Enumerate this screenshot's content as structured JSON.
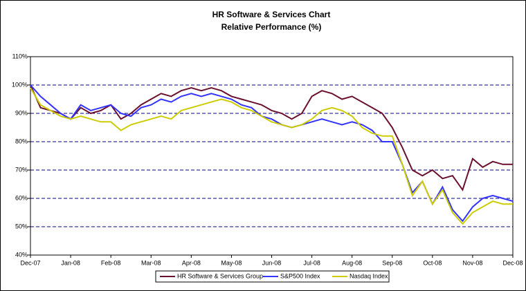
{
  "chart_data": {
    "type": "line",
    "title": "HR Software & Services Chart",
    "subtitle": "Relative Performance (%)",
    "categories": [
      "Dec-07",
      null,
      null,
      null,
      "Jan-08",
      null,
      null,
      null,
      "Feb-08",
      null,
      null,
      null,
      "Mar-08",
      null,
      null,
      null,
      "Apr-08",
      null,
      null,
      null,
      "May-08",
      null,
      null,
      null,
      "Jun-08",
      null,
      null,
      null,
      "Jul-08",
      null,
      null,
      null,
      "Aug-08",
      null,
      null,
      null,
      "Sep-08",
      null,
      null,
      null,
      "Oct-08",
      null,
      null,
      null,
      "Nov-08",
      null,
      null,
      null,
      "Dec-08"
    ],
    "series": [
      {
        "name": "HR Software & Services Group",
        "color": "#6b0f2e",
        "values": [
          100,
          92,
          91,
          90,
          88,
          92,
          90,
          91,
          93,
          88,
          90,
          93,
          95,
          97,
          96,
          98,
          99,
          98,
          99,
          98,
          96,
          95,
          94,
          93,
          91,
          90,
          88,
          90,
          96,
          98,
          97,
          95,
          96,
          94,
          92,
          90,
          85,
          78,
          70,
          68,
          70,
          67,
          68,
          63,
          74,
          71,
          73,
          72,
          72
        ]
      },
      {
        "name": "S&P500 Index",
        "color": "#3333ff",
        "values": [
          100,
          96,
          93,
          90,
          88,
          93,
          91,
          92,
          93,
          90,
          89,
          92,
          93,
          95,
          94,
          96,
          97,
          96,
          97,
          96,
          95,
          93,
          92,
          89,
          88,
          86,
          85,
          86,
          87,
          88,
          87,
          86,
          87,
          86,
          84,
          80,
          80,
          72,
          62,
          66,
          58,
          64,
          56,
          52,
          57,
          60,
          61,
          60,
          59
        ]
      },
      {
        "name": "Nasdaq Index",
        "color": "#cccc00",
        "values": [
          99,
          93,
          91,
          89,
          88,
          89,
          88,
          87,
          87,
          84,
          86,
          87,
          88,
          89,
          88,
          91,
          92,
          93,
          94,
          95,
          94,
          92,
          91,
          89,
          87,
          86,
          85,
          86,
          88,
          91,
          92,
          91,
          89,
          85,
          83,
          82,
          82,
          72,
          61,
          66,
          58,
          63,
          55,
          51,
          55,
          57,
          59,
          58,
          58
        ]
      }
    ],
    "ylim": [
      40,
      110
    ],
    "yticks": [
      {
        "value": 40,
        "label": "40%"
      },
      {
        "value": 50,
        "label": "50%"
      },
      {
        "value": 60,
        "label": "60%"
      },
      {
        "value": 70,
        "label": "70%"
      },
      {
        "value": 80,
        "label": "80%"
      },
      {
        "value": 90,
        "label": "90%"
      },
      {
        "value": 100,
        "label": "100%"
      },
      {
        "value": 110,
        "label": "110%"
      }
    ],
    "grid": true,
    "legend": "bottom"
  }
}
